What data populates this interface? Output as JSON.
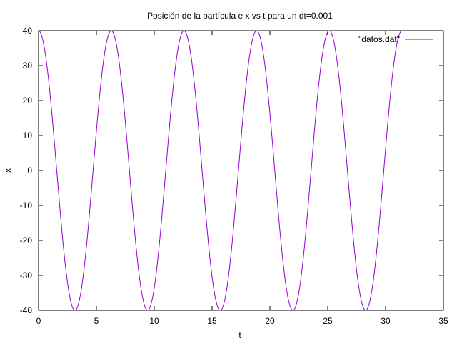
{
  "chart_data": {
    "type": "line",
    "title": "Posición de la partícula e x vs t para un dt=0.001",
    "xlabel": "t",
    "ylabel": "x",
    "xlim": [
      0,
      35
    ],
    "ylim": [
      -40,
      40
    ],
    "x_ticks": [
      0,
      5,
      10,
      15,
      20,
      25,
      30,
      35
    ],
    "x_tick_labels": [
      "0",
      "5",
      "10",
      "15",
      "20",
      "25",
      "30",
      "35"
    ],
    "y_ticks": [
      -40,
      -30,
      -20,
      -10,
      0,
      10,
      20,
      30,
      40
    ],
    "y_tick_labels": [
      "-40",
      "-30",
      "-20",
      "-10",
      "0",
      "10",
      "20",
      "30",
      "40"
    ],
    "grid": false,
    "legend_position": "top-right",
    "series": [
      {
        "name": "\"datos.dat\"",
        "color": "#9400d3",
        "function": "x = 40*cos(t)",
        "t_range": [
          0,
          31.4
        ],
        "x": [
          0,
          1.57,
          3.14,
          4.71,
          6.28,
          7.85,
          9.42,
          11.0,
          12.57,
          14.14,
          15.71,
          17.28,
          18.85,
          20.42,
          21.99,
          23.56,
          25.13,
          26.7,
          28.27,
          29.85,
          31.4
        ],
        "y": [
          40,
          0,
          -40,
          0,
          40,
          0,
          -40,
          0,
          40,
          0,
          -40,
          0,
          40,
          0,
          -40,
          0,
          40,
          0,
          -40,
          0,
          40
        ]
      }
    ]
  }
}
